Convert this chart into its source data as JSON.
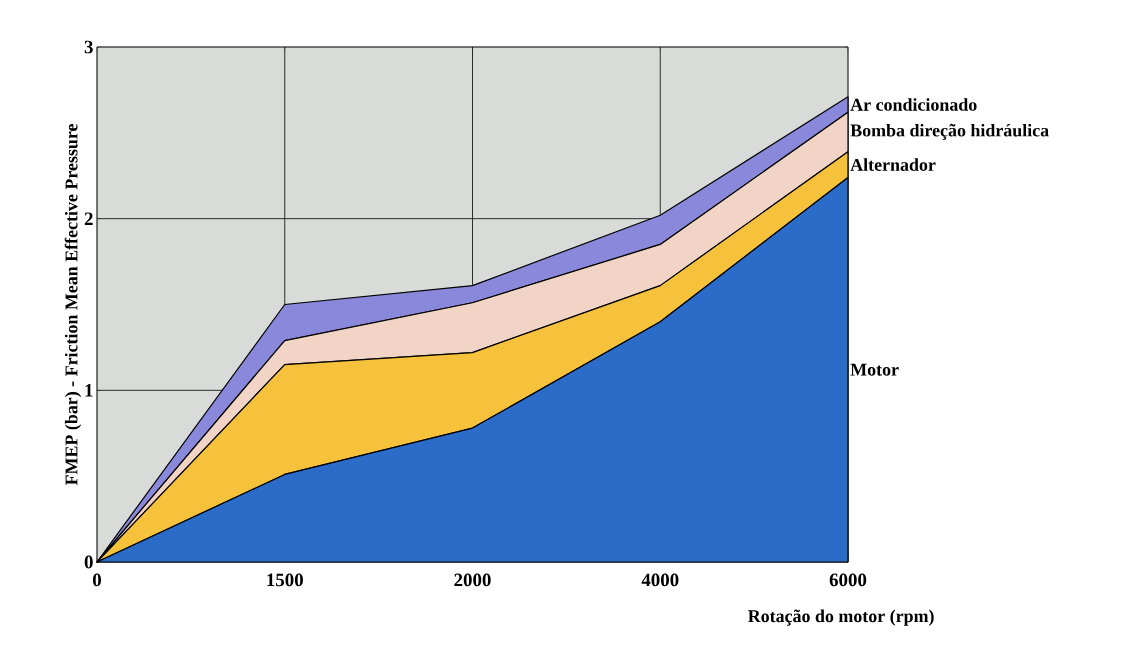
{
  "chart_data": {
    "type": "area",
    "stacked": true,
    "xlabel": "Rotação do motor (rpm)",
    "ylabel": "FMEP (bar) - Friction Mean Effective Pressure",
    "categories": [
      "0",
      "1500",
      "2000",
      "4000",
      "6000"
    ],
    "ylim": [
      0,
      3
    ],
    "yticks": [
      0,
      1,
      2,
      3
    ],
    "grid": true,
    "legend": false,
    "series": [
      {
        "name": "Motor",
        "color": "#2a6cc8",
        "values": [
          0,
          0.51,
          0.78,
          1.4,
          2.24
        ]
      },
      {
        "name": "Alternador",
        "color": "#f6c23c",
        "values": [
          0,
          0.64,
          0.44,
          0.21,
          0.15
        ]
      },
      {
        "name": "Bomba direção hidráulica",
        "color": "#f1d4c6",
        "values": [
          0,
          0.14,
          0.29,
          0.24,
          0.23
        ]
      },
      {
        "name": "Ar condicionado",
        "color": "#8a88da",
        "values": [
          0,
          0.21,
          0.1,
          0.17,
          0.09
        ]
      }
    ]
  }
}
